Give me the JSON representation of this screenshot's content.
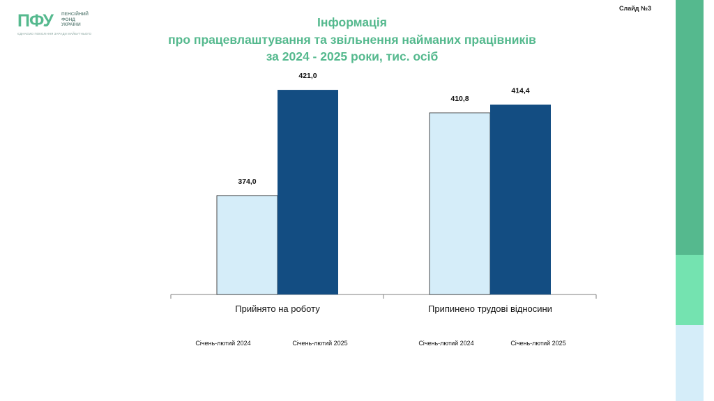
{
  "logo": {
    "letters": "ПФУ",
    "line1": "ПЕНСІЙНИЙ",
    "line2": "ФОНД",
    "line3": "УКРАЇНИ",
    "tagline": "ЄДНАЄМО ПОКОЛІННЯ ЗАРАДИ МАЙБУТНЬОГО"
  },
  "slide_number": "Слайд №3",
  "title": {
    "line1": "Інформація",
    "line2": "про працевлаштування та звільнення найманих працівників",
    "line3": "за 2024 - 2025  роки,  тис. осіб"
  },
  "colors": {
    "accent_green": "#55b98e",
    "light_green": "#74e3b0",
    "light_blue": "#d5edf9",
    "series_2024": "#d5edf9",
    "series_2025": "#134d82"
  },
  "chart_data": {
    "type": "bar",
    "title": "Інформація про працевлаштування та звільнення найманих працівників за 2024 - 2025 роки, тис. осіб",
    "categories": [
      "Прийнято на роботу",
      "Припинено трудові відносини"
    ],
    "series": [
      {
        "name": "Січень-лютий 2024",
        "color": "#d5edf9",
        "values": [
          374.0,
          410.8
        ],
        "labels": [
          "374,0",
          "410,8"
        ]
      },
      {
        "name": "Січень-лютий 2025",
        "color": "#134d82",
        "values": [
          421.0,
          414.4
        ],
        "labels": [
          "421,0",
          "414,4"
        ]
      }
    ],
    "ylim": [
      330,
      430
    ],
    "grid": false,
    "legend": "below each category"
  }
}
